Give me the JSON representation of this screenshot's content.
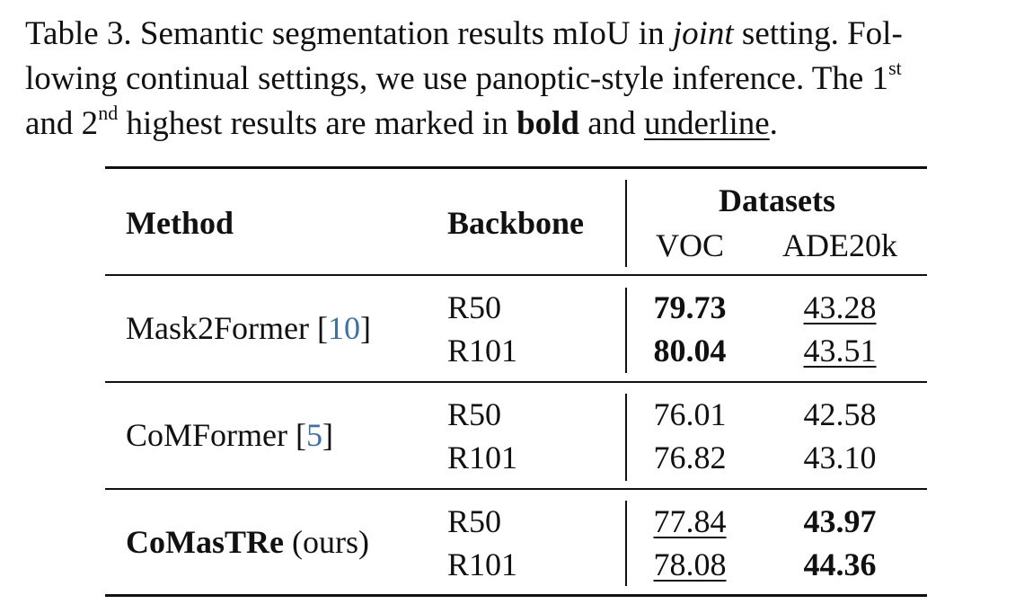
{
  "caption": {
    "lines": [
      [
        "Table 3. Semantic segmentation results mIoU in ",
        "joint",
        " setting. Fol-"
      ],
      [
        "lowing continual settings, we use panoptic-style inference. The 1",
        "st"
      ],
      [
        "and 2",
        "nd",
        " highest results are marked in ",
        "bold",
        " and ",
        "underline",
        "."
      ]
    ]
  },
  "table": {
    "header": {
      "method": "Method",
      "backbone": "Backbone",
      "group": "Datasets",
      "columns": [
        "VOC",
        "ADE20k"
      ]
    },
    "groups": [
      {
        "method": [
          "Mask2Former [",
          "10",
          "]"
        ],
        "rows": [
          [
            "R50",
            "79.73",
            "43.28"
          ],
          [
            "R101",
            "80.04",
            "43.51"
          ]
        ]
      },
      {
        "method": [
          "CoMFormer [",
          "5",
          "]"
        ],
        "rows": [
          [
            "R50",
            "76.01",
            "42.58"
          ],
          [
            "R101",
            "76.82",
            "43.10"
          ]
        ]
      },
      {
        "method": [
          "CoMasTRe",
          " (ours)"
        ],
        "rows": [
          [
            "R50",
            "77.84",
            "43.97"
          ],
          [
            "R101",
            "78.08",
            "44.36"
          ]
        ]
      }
    ]
  }
}
